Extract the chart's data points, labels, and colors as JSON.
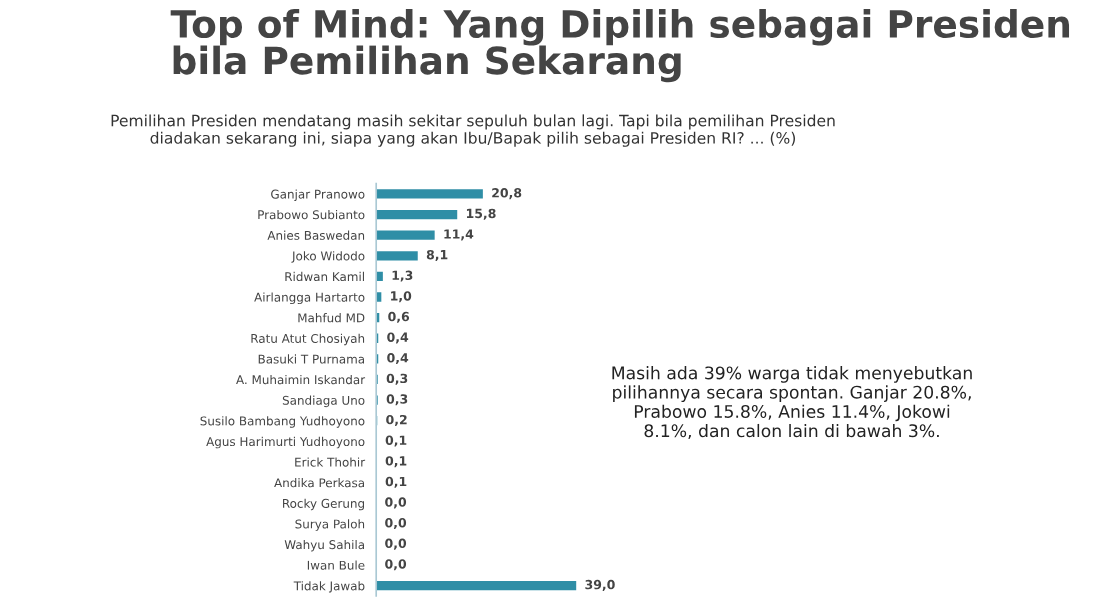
{
  "chart_data": {
    "type": "bar",
    "orientation": "horizontal",
    "title": "Top of Mind: Yang Dipilih sebagai Presiden\nbila Pemilihan Sekarang",
    "subtitle": "Pemilihan Presiden mendatang masih sekitar sepuluh bulan lagi. Tapi bila pemilihan Presiden\ndiadakan sekarang ini, siapa yang akan Ibu/Bapak pilih sebagai Presiden RI? ... (%)",
    "categories": [
      "Ganjar Pranowo",
      "Prabowo Subianto",
      "Anies Baswedan",
      "Joko Widodo",
      "Ridwan Kamil",
      "Airlangga Hartarto",
      "Mahfud MD",
      "Ratu Atut Chosiyah",
      "Basuki T Purnama",
      "A. Muhaimin Iskandar",
      "Sandiaga Uno",
      "Susilo Bambang Yudhoyono",
      "Agus Harimurti Yudhoyono",
      "Erick Thohir",
      "Andika Perkasa",
      "Rocky Gerung",
      "Surya Paloh",
      "Wahyu Sahila",
      "Iwan Bule",
      "Tidak Jawab"
    ],
    "values": [
      20.8,
      15.8,
      11.4,
      8.1,
      1.3,
      1.0,
      0.6,
      0.4,
      0.4,
      0.3,
      0.3,
      0.2,
      0.1,
      0.1,
      0.1,
      0.0,
      0.0,
      0.0,
      0.0,
      39.0
    ],
    "value_labels": [
      "20,8",
      "15,8",
      "11,4",
      "8,1",
      "1,3",
      "1,0",
      "0,6",
      "0,4",
      "0,4",
      "0,3",
      "0,3",
      "0,2",
      "0,1",
      "0,1",
      "0,1",
      "0,0",
      "0,0",
      "0,0",
      "0,0",
      "39,0"
    ],
    "color": "#2f8ea6",
    "grid": false,
    "legend": false,
    "tick_labels": "y",
    "annotations": [
      "Masih ada 39% warga tidak menyebutkan\npilihannya secara spontan. Ganjar 20.8%,\nPrabowo 15.8%, Anies 11.4%, Jokowi\n8.1%, dan calon lain di bawah 3%."
    ]
  }
}
